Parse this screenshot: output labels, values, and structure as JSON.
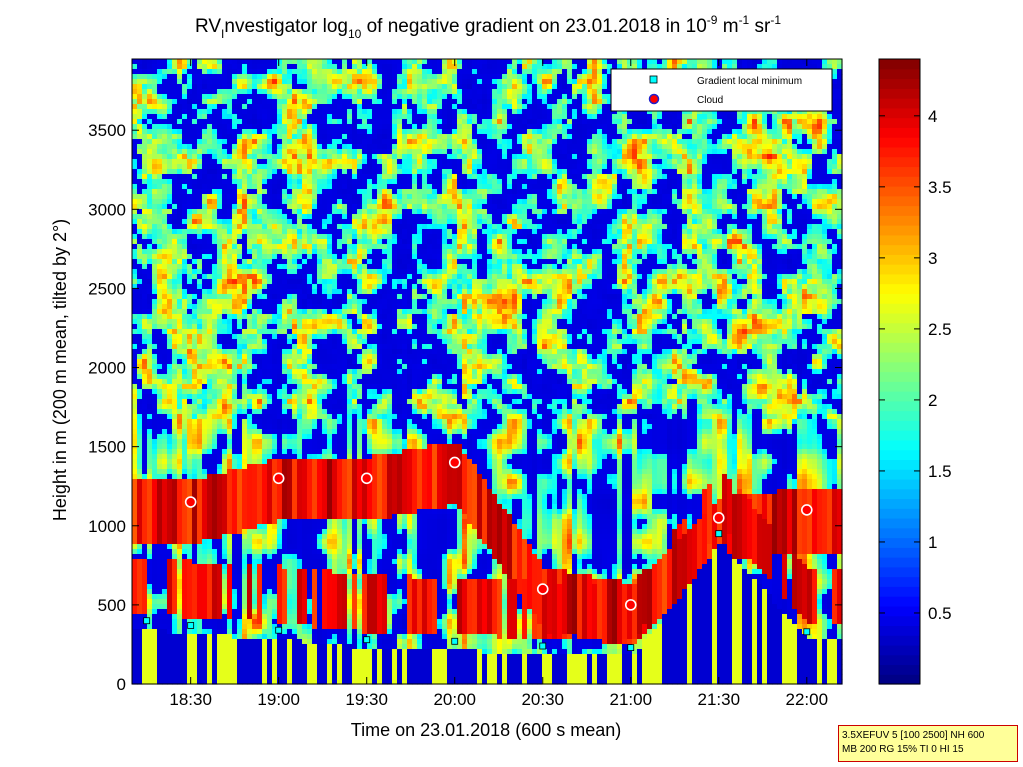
{
  "chart_data": {
    "type": "heatmap",
    "title": {
      "prefix": "RV",
      "sub": "I",
      "middle": "nvestigator log",
      "sub2": "10",
      "suffix": " of negative gradient on 23.01.2018 in 10",
      "sup1": "-9",
      "unit_m": " m",
      "sup2": "-1",
      "unit_sr": " sr",
      "sup3": "-1"
    },
    "xlabel": "Time on 23.01.2018 (600 s mean)",
    "ylabel": "Height in m (200 m mean, tilted by 2°)",
    "x_range_hours": [
      18.1667,
      22.2
    ],
    "x_ticks": [
      "18:30",
      "19:00",
      "19:30",
      "20:00",
      "20:30",
      "21:00",
      "21:30",
      "22:00"
    ],
    "y_range": [
      0,
      3950
    ],
    "y_ticks": [
      0,
      500,
      1000,
      1500,
      2000,
      2500,
      3000,
      3500
    ],
    "colorbar": {
      "range": [
        0,
        4.4
      ],
      "ticks": [
        "0.5",
        "1",
        "1.5",
        "2",
        "2.5",
        "3",
        "3.5",
        "4"
      ],
      "colormap": "jet"
    },
    "legend": {
      "position": "top-right",
      "entries": [
        {
          "label": "Gradient local minimum",
          "marker": "square",
          "color": "#00ffff"
        },
        {
          "label": "Cloud",
          "marker": "circle",
          "color": "#ff0000"
        }
      ]
    },
    "info_box": {
      "line1": "3.5XEFUV 5 [100 2500] NH 600",
      "line2": "MB 200 RG 15% TI 0 HI 15"
    },
    "cloud_base_series": [
      {
        "time": "18:30",
        "height": 1150
      },
      {
        "time": "19:00",
        "height": 1300
      },
      {
        "time": "19:30",
        "height": 1300
      },
      {
        "time": "20:00",
        "height": 1400
      },
      {
        "time": "20:30",
        "height": 600
      },
      {
        "time": "21:00",
        "height": 500
      },
      {
        "time": "21:30",
        "height": 1050
      },
      {
        "time": "22:00",
        "height": 1100
      }
    ],
    "gradient_minimum_series": [
      {
        "time": "18:15",
        "height": 400
      },
      {
        "time": "18:30",
        "height": 370
      },
      {
        "time": "19:00",
        "height": 340
      },
      {
        "time": "19:30",
        "height": 280
      },
      {
        "time": "20:00",
        "height": 270
      },
      {
        "time": "20:30",
        "height": 240
      },
      {
        "time": "21:00",
        "height": 230
      },
      {
        "time": "21:30",
        "height": 950
      },
      {
        "time": "22:00",
        "height": 330
      }
    ]
  }
}
